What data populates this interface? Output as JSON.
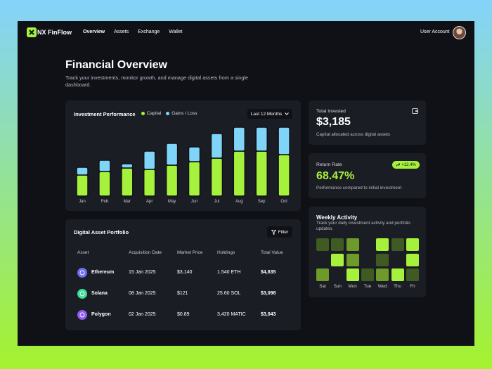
{
  "nav": {
    "brand": "NX FinFlow",
    "links": [
      "Overview",
      "Assets",
      "Exchange",
      "Wallet"
    ],
    "user": "User Account"
  },
  "header": {
    "title": "Financial Overview",
    "subtitle": "Track your investments, monitor growth, and manage digital assets from a single dashboard."
  },
  "chart_data": {
    "type": "bar",
    "stacked": true,
    "title": "Investment Performance",
    "range": "Last 12 Months",
    "categories": [
      "Jan",
      "Feb",
      "Mar",
      "Apr",
      "May",
      "Jun",
      "Jul",
      "Aug",
      "Sep",
      "Oct"
    ],
    "series": [
      {
        "name": "Capital",
        "color": "#a6f13b",
        "values": [
          30,
          35,
          40,
          38,
          44,
          49,
          54,
          64,
          64,
          59
        ]
      },
      {
        "name": "Gains / Loss",
        "color": "#7fd4f8",
        "values": [
          11,
          16,
          6,
          26,
          31,
          21,
          35,
          34,
          34,
          39
        ]
      }
    ]
  },
  "portfolio": {
    "title": "Digital Asset Portfolio",
    "filter": "Filter",
    "columns": [
      "Asset",
      "Acquisition Date",
      "Market Price",
      "Holdings",
      "Total Value"
    ],
    "rows": [
      {
        "asset": "Ethereum",
        "date": "15 Jan 2025",
        "price": "$3,140",
        "holdings": "1.540 ETH",
        "total": "$4,835",
        "color": "#6b6ff0"
      },
      {
        "asset": "Solana",
        "date": "08 Jan 2025",
        "price": "$121",
        "holdings": "25.60 SOL",
        "total": "$3,098",
        "color": "#3ddc97"
      },
      {
        "asset": "Polygon",
        "date": "02 Jan 2025",
        "price": "$0.89",
        "holdings": "3,420 MATIC",
        "total": "$3,043",
        "color": "#8e5cf0"
      }
    ]
  },
  "stats": [
    {
      "label": "Total Invested",
      "value": "$3,185",
      "note": "Capital allocated across digital assets"
    },
    {
      "label": "Return Rate",
      "badge": "+12.4%",
      "value": "68.47%",
      "note": "Performance compared to initial investment"
    }
  ],
  "weekly_activity": {
    "title": "Weekly Activity",
    "subtitle": "Track your daily investment activity and portfolio updates.",
    "days": [
      "Sat",
      "Sun",
      "Mon",
      "Tue",
      "Wed",
      "Thu",
      "Fri"
    ],
    "level_colors": [
      "#3f5a22",
      "#6e9a2a",
      "#a6f13b"
    ],
    "levels": [
      [
        1,
        1,
        2,
        0,
        3,
        1,
        3
      ],
      [
        0,
        3,
        2,
        0,
        1,
        0,
        3
      ],
      [
        2,
        0,
        3,
        1,
        2,
        3,
        1
      ]
    ]
  }
}
